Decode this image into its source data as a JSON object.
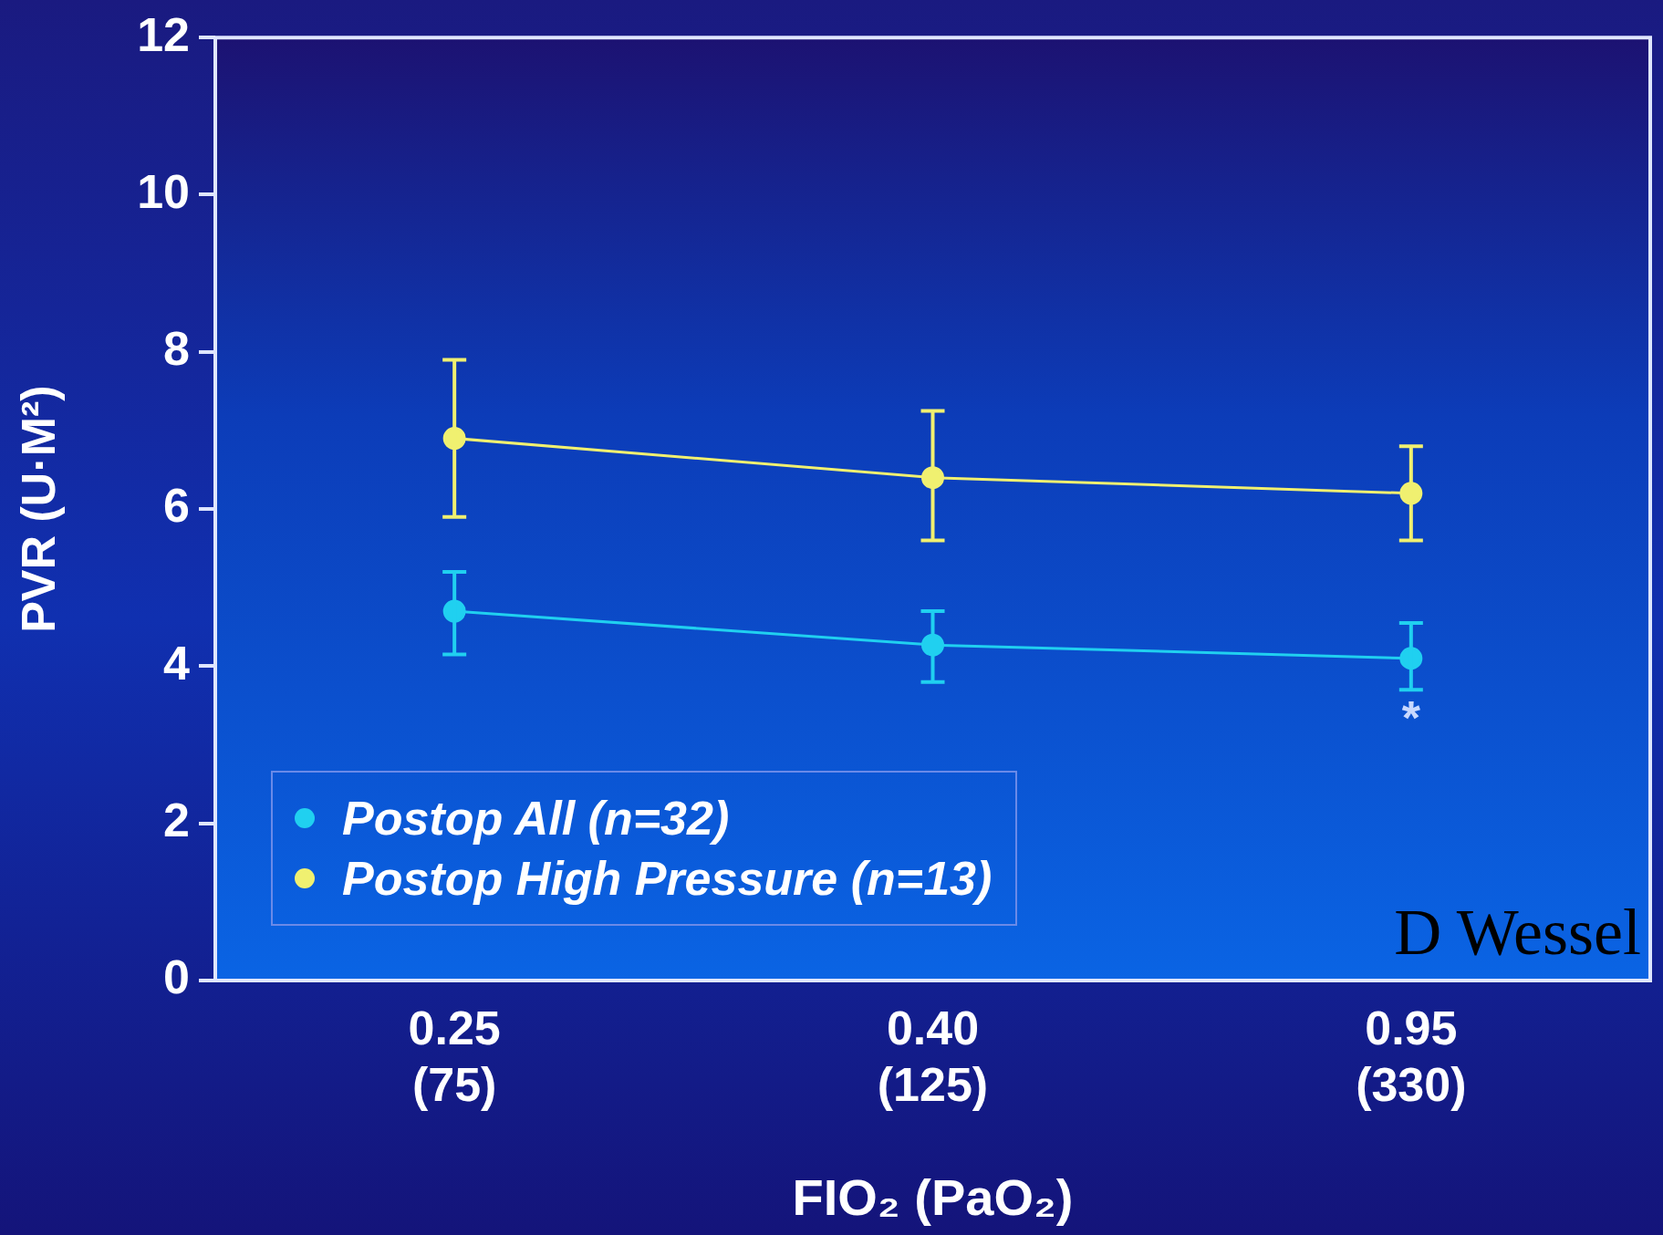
{
  "chart_data": {
    "type": "line",
    "xlabel": "FIO₂ (PaO₂)",
    "ylabel": "PVR (U·M²)",
    "categories": [
      "0.25\n(75)",
      "0.40\n(125)",
      "0.95\n(330)"
    ],
    "series": [
      {
        "name": "Postop All (n=32)",
        "color": "#20d0f0",
        "values": [
          4.7,
          4.27,
          4.1
        ],
        "errors": [
          [
            4.15,
            5.2
          ],
          [
            3.8,
            4.7
          ],
          [
            3.7,
            4.55
          ]
        ]
      },
      {
        "name": "Postop High Pressure (n=13)",
        "color": "#f0f070",
        "values": [
          6.9,
          6.4,
          6.2
        ],
        "errors": [
          [
            5.9,
            7.9
          ],
          [
            5.6,
            7.25
          ],
          [
            5.6,
            6.8
          ]
        ]
      }
    ],
    "ylim": [
      0,
      12
    ],
    "yticks": [
      0,
      2,
      4,
      6,
      8,
      10,
      12
    ],
    "grid": false,
    "legend": "bottom left",
    "marker": "circle",
    "annotations": [
      "D Wessel",
      "*"
    ]
  }
}
